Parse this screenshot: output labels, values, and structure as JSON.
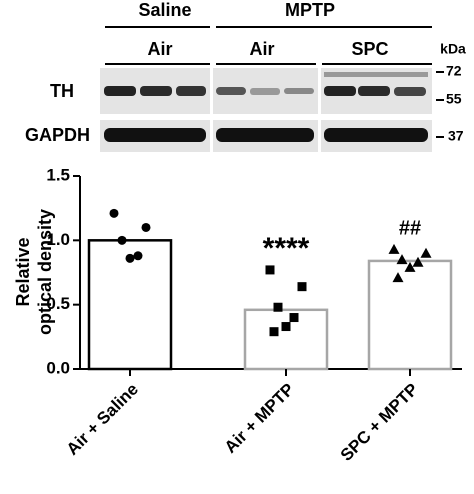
{
  "blot": {
    "groups": [
      "Saline",
      "MPTP"
    ],
    "subgroups": [
      "Air",
      "Air",
      "SPC"
    ],
    "rows": [
      "TH",
      "GAPDH"
    ],
    "unit": "kDa",
    "markers": [
      "72",
      "55",
      "37"
    ]
  },
  "chart_data": {
    "type": "bar",
    "y_label": [
      "Relative",
      "optical density"
    ],
    "categories": [
      "Air + Saline",
      "Air + MPTP",
      "SPC + MPTP"
    ],
    "values": [
      1.0,
      0.46,
      0.84
    ],
    "colors": [
      "#000000",
      "#a6a6a6",
      "#a6a6a6"
    ],
    "points": [
      [
        1.21,
        1.1,
        1.0,
        0.88,
        0.86
      ],
      [
        0.77,
        0.64,
        0.48,
        0.4,
        0.33,
        0.29
      ],
      [
        0.93,
        0.9,
        0.85,
        0.83,
        0.79,
        0.71
      ]
    ],
    "markers": [
      "circle",
      "square",
      "triangle"
    ],
    "annotations": [
      null,
      "****",
      "##"
    ],
    "ylim": [
      0,
      1.5
    ],
    "yticks": [
      {
        "value": 0,
        "label": "0.0"
      },
      0.5,
      {
        "value": 1,
        "label": "1.0"
      },
      1.5
    ]
  }
}
